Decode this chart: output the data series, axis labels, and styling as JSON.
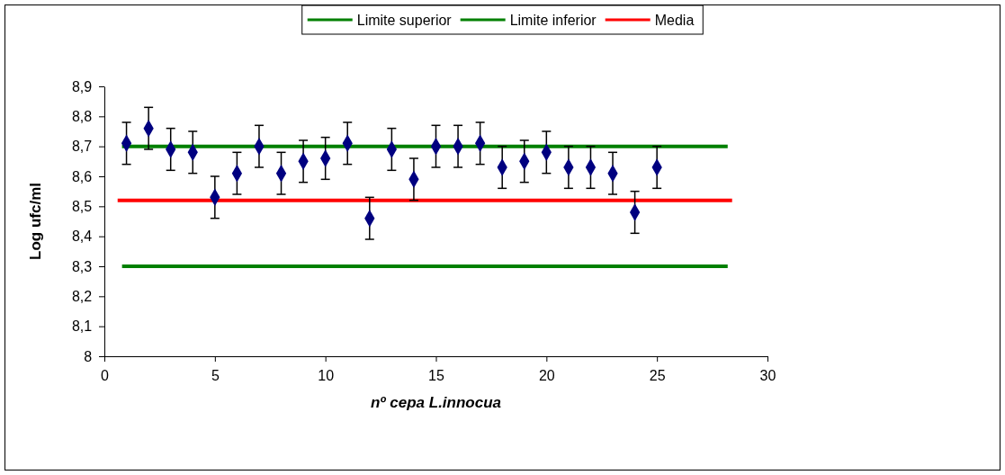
{
  "chart_data": {
    "type": "scatter",
    "xlabel": "nº cepa L.innocua",
    "ylabel": "Log ufc/ml",
    "xlim": [
      0,
      30
    ],
    "xticks": [
      0,
      5,
      10,
      15,
      20,
      25,
      30
    ],
    "ylim": [
      8,
      8.9
    ],
    "yticks": [
      {
        "value": 8,
        "label": "8"
      },
      {
        "value": 8.1,
        "label": "8,1"
      },
      {
        "value": 8.2,
        "label": "8,2"
      },
      {
        "value": 8.3,
        "label": "8,3"
      },
      {
        "value": 8.4,
        "label": "8,4"
      },
      {
        "value": 8.5,
        "label": "8,5"
      },
      {
        "value": 8.6,
        "label": "8,6"
      },
      {
        "value": 8.7,
        "label": "8,7"
      },
      {
        "value": 8.8,
        "label": "8,8"
      },
      {
        "value": 8.9,
        "label": "8,9"
      }
    ],
    "grid": false,
    "legend": "top",
    "marker": "diamond",
    "series": [
      {
        "type": "line",
        "name": "Limite superior",
        "color": "#008000",
        "marker": "none",
        "x": [
          0.8,
          28.2
        ],
        "values": [
          8.7,
          8.7
        ]
      },
      {
        "type": "line",
        "name": "Limite inferior",
        "color": "#008000",
        "marker": "none",
        "x": [
          0.8,
          28.2
        ],
        "values": [
          8.3,
          8.3
        ]
      },
      {
        "type": "line",
        "name": "Media",
        "color": "#ff0000",
        "marker": "none",
        "x": [
          0.6,
          28.4
        ],
        "values": [
          8.52,
          8.52
        ]
      },
      {
        "color": "#000080",
        "x": [
          1,
          2,
          3,
          4,
          5,
          6,
          7,
          8,
          9,
          10,
          11,
          12,
          13,
          14,
          15,
          16,
          17,
          18,
          19,
          20,
          21,
          22,
          23,
          24,
          25
        ],
        "values": [
          8.71,
          8.76,
          8.69,
          8.68,
          8.53,
          8.61,
          8.7,
          8.61,
          8.65,
          8.66,
          8.71,
          8.46,
          8.69,
          8.59,
          8.7,
          8.7,
          8.71,
          8.63,
          8.65,
          8.68,
          8.63,
          8.63,
          8.61,
          8.48,
          8.63
        ],
        "errors": [
          0.07,
          0.07,
          0.07,
          0.07,
          0.07,
          0.07,
          0.07,
          0.07,
          0.07,
          0.07,
          0.07,
          0.07,
          0.07,
          0.07,
          0.07,
          0.07,
          0.07,
          0.07,
          0.07,
          0.07,
          0.07,
          0.07,
          0.07,
          0.07,
          0.07
        ]
      }
    ]
  }
}
